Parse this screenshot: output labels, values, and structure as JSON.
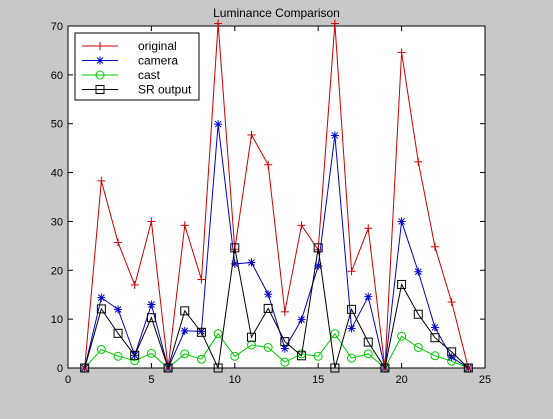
{
  "chart_data": {
    "type": "line",
    "title": "Luminance Comparison",
    "xlabel": "",
    "ylabel": "",
    "xlim": [
      0,
      25
    ],
    "ylim": [
      0,
      70
    ],
    "xticks": [
      0,
      5,
      10,
      15,
      20,
      25
    ],
    "yticks": [
      0,
      10,
      20,
      30,
      40,
      50,
      60,
      70
    ],
    "grid": false,
    "legend_position": "top-left",
    "x": [
      1,
      2,
      3,
      4,
      5,
      6,
      7,
      8,
      9,
      10,
      11,
      12,
      13,
      14,
      15,
      16,
      17,
      18,
      19,
      20,
      21,
      22,
      23,
      24
    ],
    "series": [
      {
        "name": "original",
        "color": "#cc0000",
        "marker": "plus",
        "values": [
          0,
          38.3,
          25.7,
          17,
          30,
          0,
          29.2,
          18.1,
          70.5,
          24.3,
          47.7,
          41.6,
          11.5,
          29.2,
          24.2,
          70.5,
          19.8,
          28.6,
          0,
          64.6,
          42.2,
          24.8,
          13.5,
          0
        ]
      },
      {
        "name": "camera",
        "color": "#0000cc",
        "marker": "asterisk",
        "values": [
          0,
          14.4,
          12,
          2.6,
          13,
          0,
          7.6,
          7.5,
          49.9,
          21.3,
          21.6,
          15.1,
          4,
          9.9,
          20.9,
          47.6,
          8.1,
          14.6,
          0,
          30,
          19.7,
          8.3,
          2.2,
          0
        ]
      },
      {
        "name": "cast",
        "color": "#00cc00",
        "marker": "circle",
        "values": [
          0,
          3.8,
          2.4,
          1.5,
          3,
          0,
          2.9,
          1.8,
          7,
          2.4,
          4.7,
          4.2,
          1.2,
          2.9,
          2.4,
          7,
          2,
          2.9,
          0,
          6.5,
          4.2,
          2.5,
          1.4,
          0
        ]
      },
      {
        "name": "SR output",
        "color": "#000000",
        "marker": "square",
        "values": [
          0,
          12.1,
          7.1,
          2.6,
          10.3,
          0,
          11.7,
          7.3,
          0,
          24.6,
          6.3,
          12.2,
          5.4,
          2.5,
          24.6,
          0,
          12,
          5.3,
          0,
          17.1,
          11,
          6.2,
          3.3,
          0
        ]
      }
    ]
  }
}
